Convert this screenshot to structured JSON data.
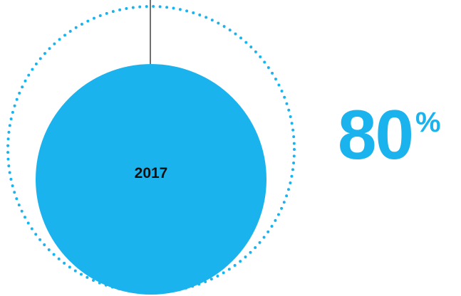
{
  "chart_data": {
    "type": "pie",
    "categories": [
      "2017"
    ],
    "values": [
      80
    ],
    "max": 100,
    "unit": "%",
    "title": "",
    "colors": {
      "fill": "#1bb3ee",
      "outline": "#1bb3ee",
      "label": "#111111",
      "leader": "#222222"
    }
  },
  "stat": {
    "value": "80",
    "unit": "%"
  }
}
